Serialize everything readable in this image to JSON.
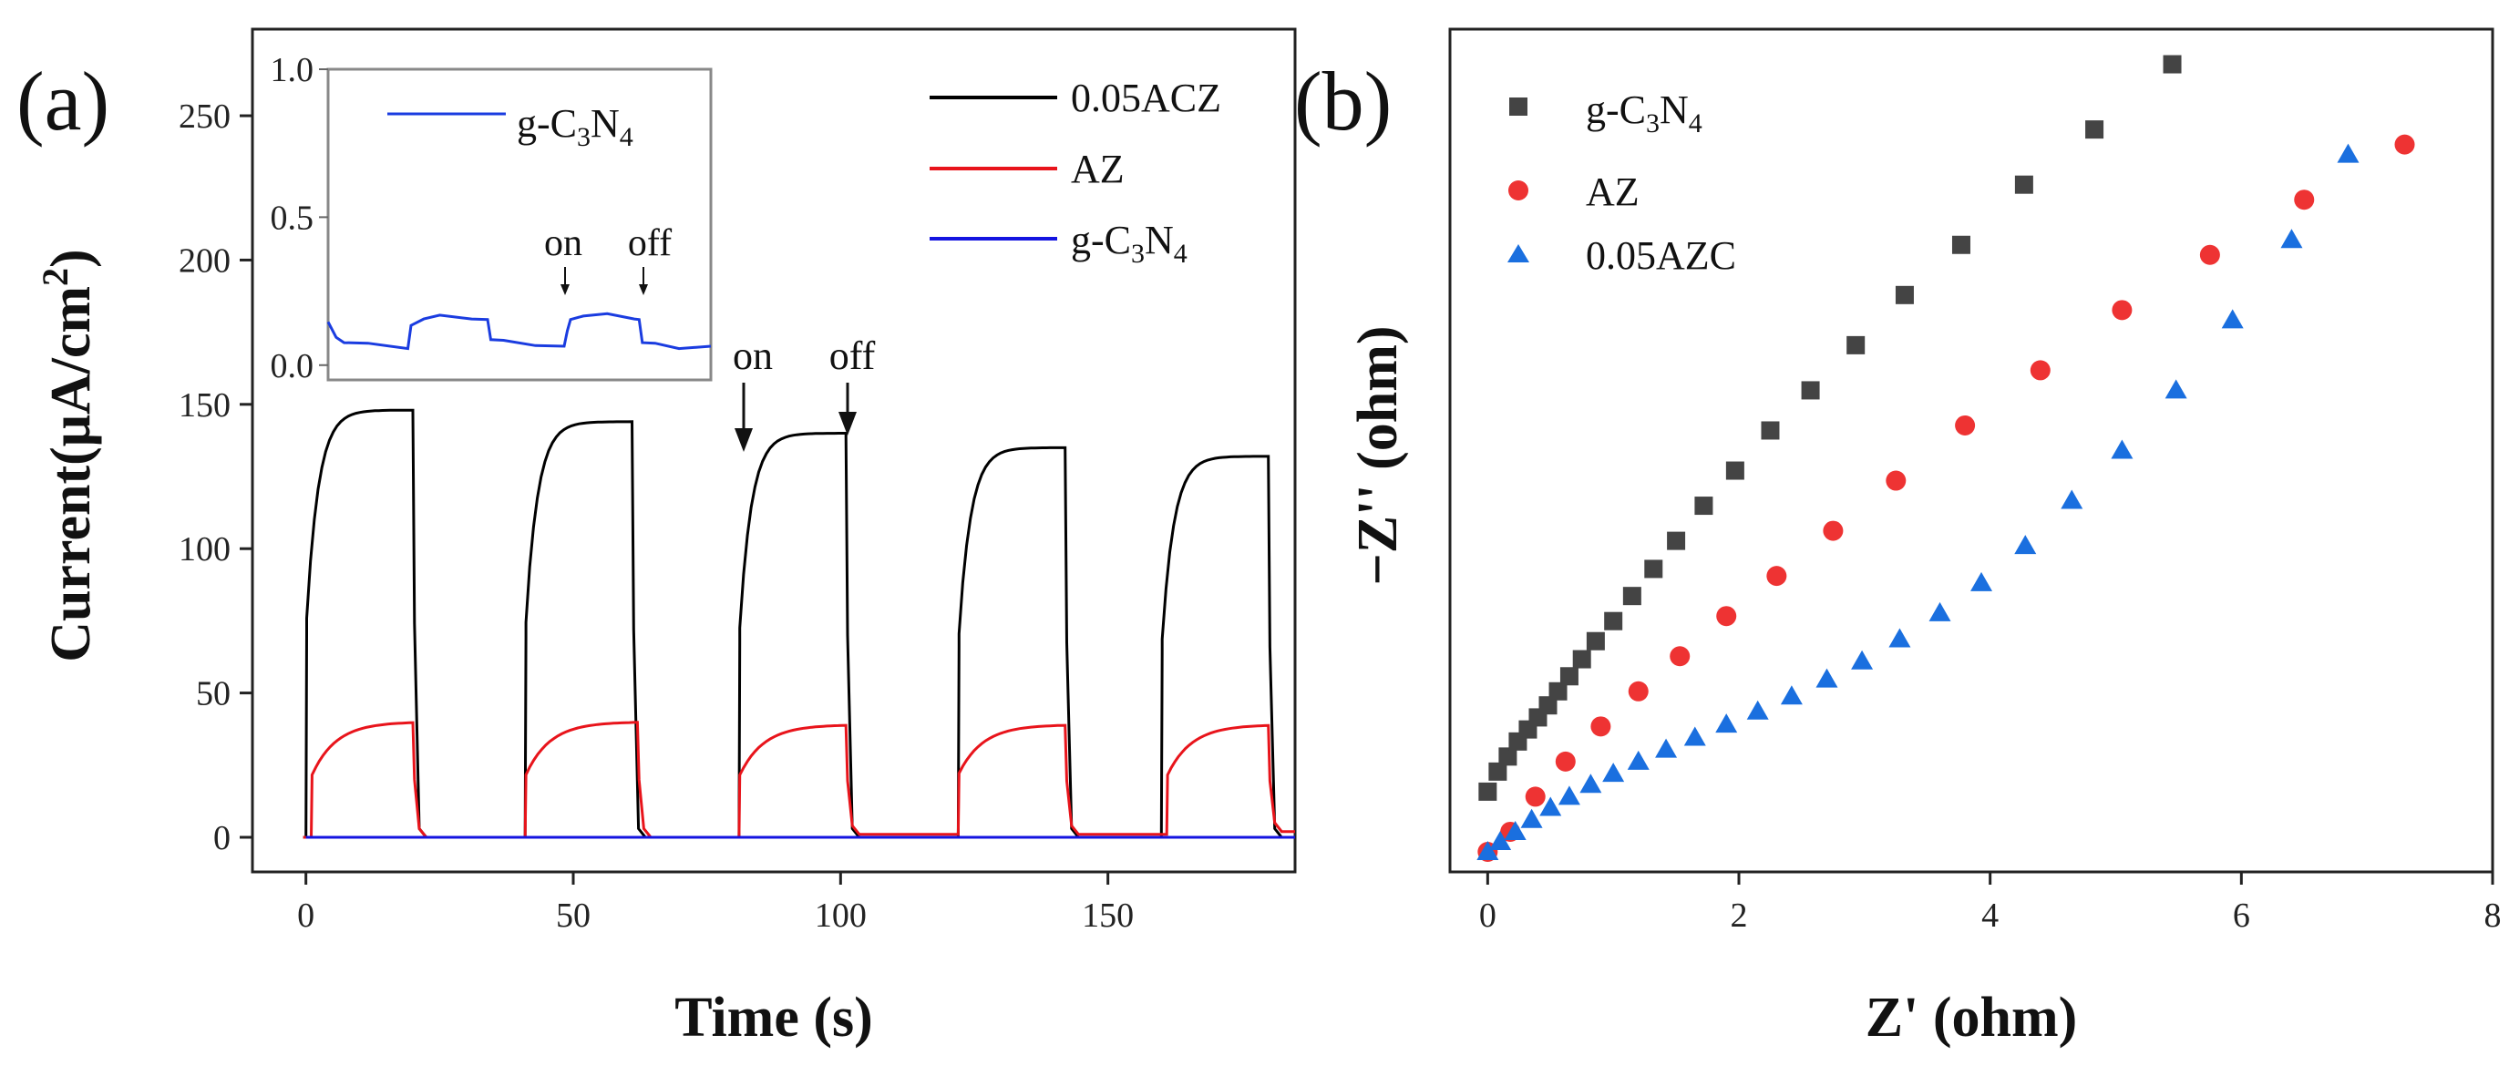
{
  "chart_data": [
    {
      "panel": "(a)",
      "type": "line",
      "xlabel": "Time (s)",
      "ylabel_main": "Current(μA/cm",
      "ylabel_sup": "2",
      "ylabel_close": ")",
      "xlim": [
        -10,
        185
      ],
      "ylim": [
        -12,
        280
      ],
      "xticks": [
        0,
        50,
        100,
        150
      ],
      "yticks": [
        0,
        50,
        100,
        150,
        200,
        250
      ],
      "annotations": [
        {
          "text": "on",
          "x": 81.5
        },
        {
          "text": "off",
          "x": 101.5
        }
      ],
      "cycles": {
        "0.05ACZ": [
          {
            "on": 0,
            "off": 20,
            "start": 118,
            "end": 148,
            "dark": 0
          },
          {
            "on": 41,
            "off": 61,
            "start": 116,
            "end": 144,
            "dark": 0
          },
          {
            "on": 81,
            "off": 101,
            "start": 113,
            "end": 140,
            "dark": 0
          },
          {
            "on": 122,
            "off": 142,
            "start": 110,
            "end": 135,
            "dark": 0
          },
          {
            "on": 160,
            "off": 180,
            "start": 107,
            "end": 132,
            "dark": 0
          }
        ],
        "AZ": [
          {
            "on": 1,
            "off": 20,
            "start": 35,
            "end": 40,
            "dark": 0
          },
          {
            "on": 41,
            "off": 62,
            "start": 35,
            "end": 40,
            "dark": 0
          },
          {
            "on": 81,
            "off": 101,
            "start": 35,
            "end": 39,
            "dark": 1
          },
          {
            "on": 122,
            "off": 142,
            "start": 36,
            "end": 39,
            "dark": 1
          },
          {
            "on": 161,
            "off": 180,
            "start": 35,
            "end": 39,
            "dark": 2
          }
        ]
      },
      "series": [
        {
          "name": "0.05ACZ",
          "color": "#000000"
        },
        {
          "name": "AZ",
          "color": "#e8141b"
        },
        {
          "name": "g-C",
          "sub1": "3",
          "mid": "N",
          "sub2": "4",
          "color": "#1414e0",
          "values_const": 0
        }
      ],
      "inset": {
        "xlim": [
          0,
          240
        ],
        "ylim": [
          -0.05,
          1.0
        ],
        "yticks": [
          0.0,
          0.5,
          1.0
        ],
        "yticklabels": [
          "0.0",
          "0.5",
          "1.0"
        ],
        "legend": {
          "main": "g-C",
          "sub1": "3",
          "mid": "N",
          "sub2": "4"
        },
        "color": "#1a3ce0",
        "annotations": [
          {
            "text": "on",
            "x": 150
          },
          {
            "text": "off",
            "x": 195
          }
        ],
        "x": [
          0,
          5,
          10,
          25,
          50,
          52,
          60,
          70,
          90,
          100,
          102,
          110,
          130,
          148,
          150,
          152,
          160,
          175,
          192,
          195,
          197,
          205,
          220,
          240
        ],
        "y": [
          0.15,
          0.09,
          0.08,
          0.07,
          0.06,
          0.13,
          0.16,
          0.165,
          0.16,
          0.15,
          0.09,
          0.08,
          0.07,
          0.06,
          0.12,
          0.15,
          0.17,
          0.17,
          0.16,
          0.15,
          0.08,
          0.07,
          0.06,
          0.06
        ]
      }
    },
    {
      "panel": "(b)",
      "type": "scatter",
      "xlabel": "Z' (ohm)",
      "ylabel": "−Z'' (ohm)",
      "xlim": [
        -0.3,
        8
      ],
      "ylim": [
        -0.2,
        8.2
      ],
      "xticks": [
        0,
        2,
        4,
        6,
        8
      ],
      "series": [
        {
          "name": "g-C",
          "sub1": "3",
          "mid": "N",
          "sub2": "4",
          "marker": "square",
          "color": "#444444",
          "x": [
            0.0,
            0.08,
            0.16,
            0.24,
            0.32,
            0.4,
            0.48,
            0.56,
            0.65,
            0.75,
            0.86,
            1.0,
            1.15,
            1.32,
            1.5,
            1.72,
            1.97,
            2.25,
            2.57,
            2.93,
            3.32,
            3.77,
            4.27,
            4.83,
            5.45
          ],
          "y": [
            0.6,
            0.8,
            0.95,
            1.1,
            1.22,
            1.34,
            1.46,
            1.6,
            1.75,
            1.92,
            2.1,
            2.3,
            2.55,
            2.82,
            3.1,
            3.45,
            3.8,
            4.2,
            4.6,
            5.05,
            5.55,
            6.05,
            6.65,
            7.2,
            7.85
          ]
        },
        {
          "name": "AZ",
          "marker": "circle",
          "color": "#ee3333",
          "x": [
            0.0,
            0.18,
            0.38,
            0.62,
            0.9,
            1.2,
            1.53,
            1.9,
            2.3,
            2.75,
            3.25,
            3.8,
            4.4,
            5.05,
            5.75,
            6.5,
            7.3
          ],
          "y": [
            0.0,
            0.2,
            0.55,
            0.9,
            1.25,
            1.6,
            1.95,
            2.35,
            2.75,
            3.2,
            3.7,
            4.25,
            4.8,
            5.4,
            5.95,
            6.5,
            7.05
          ]
        },
        {
          "name": "0.05AZC",
          "marker": "triangle",
          "color": "#1a6fdf",
          "x": [
            0.0,
            0.1,
            0.22,
            0.35,
            0.5,
            0.65,
            0.82,
            1.0,
            1.2,
            1.42,
            1.65,
            1.9,
            2.15,
            2.42,
            2.7,
            2.98,
            3.28,
            3.6,
            3.93,
            4.28,
            4.65,
            5.05,
            5.48,
            5.93,
            6.4,
            6.85
          ],
          "y": [
            0.0,
            0.1,
            0.2,
            0.32,
            0.44,
            0.55,
            0.67,
            0.78,
            0.9,
            1.02,
            1.14,
            1.27,
            1.4,
            1.55,
            1.72,
            1.9,
            2.12,
            2.38,
            2.68,
            3.05,
            3.5,
            4.0,
            4.6,
            5.3,
            6.1,
            6.95
          ]
        }
      ]
    }
  ]
}
